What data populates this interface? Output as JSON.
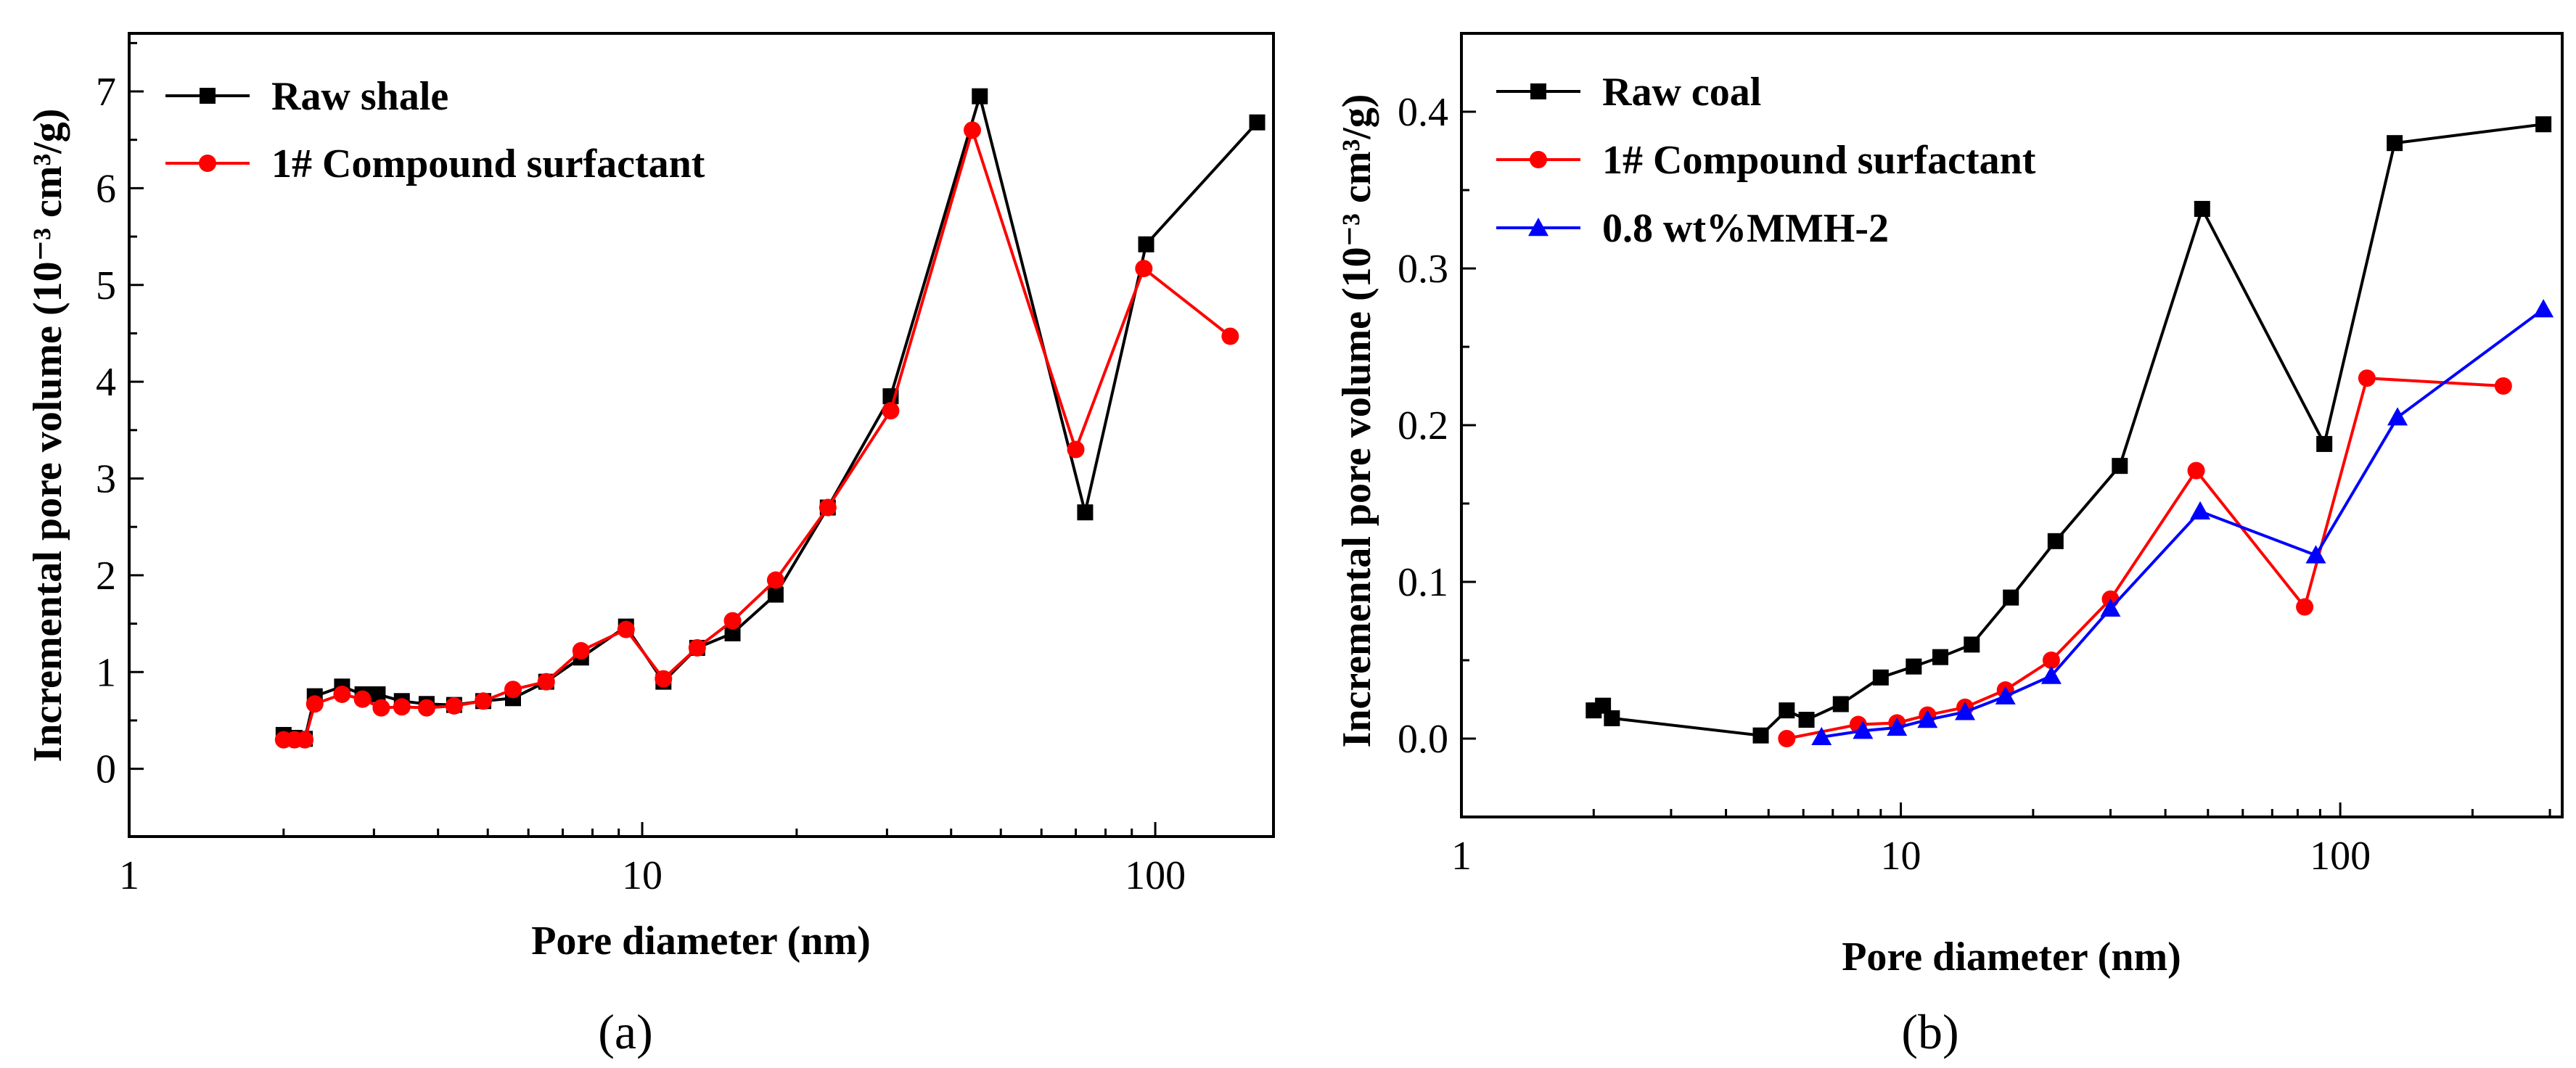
{
  "chart_data": [
    {
      "type": "line",
      "panel_label": "(a)",
      "xscale": "log",
      "xlabel": "Pore diameter (nm)",
      "ylabel": "Incremental pore volume (10⁻³ cm³/g)",
      "xlim": [
        1,
        170
      ],
      "ylim": [
        -0.7,
        7.6
      ],
      "xticks": [
        1,
        10,
        100
      ],
      "xtick_labels": [
        "1",
        "10",
        "100"
      ],
      "yticks": [
        0,
        1,
        2,
        3,
        4,
        5,
        6,
        7
      ],
      "ytick_labels": [
        "0",
        "1",
        "2",
        "3",
        "4",
        "5",
        "6",
        "7"
      ],
      "legend_position": "top-left",
      "series": [
        {
          "name": "Raw shale",
          "color": "#000000",
          "marker": "square",
          "x": [
            2.0,
            2.1,
            2.2,
            2.3,
            2.6,
            2.85,
            3.05,
            3.4,
            3.8,
            4.3,
            4.9,
            5.6,
            6.5,
            7.6,
            9.3,
            11.0,
            12.8,
            15.0,
            18.2,
            23.0,
            30.5,
            45.5,
            73.0,
            96.0,
            158.0
          ],
          "y": [
            0.35,
            0.32,
            0.31,
            0.75,
            0.85,
            0.77,
            0.77,
            0.7,
            0.67,
            0.66,
            0.7,
            0.73,
            0.9,
            1.15,
            1.47,
            0.9,
            1.25,
            1.4,
            1.8,
            2.7,
            3.85,
            6.95,
            2.65,
            5.42,
            6.68
          ]
        },
        {
          "name": "1# Compound surfactant",
          "color": "#ff0000",
          "marker": "circle",
          "x": [
            2.0,
            2.1,
            2.2,
            2.3,
            2.6,
            2.85,
            3.1,
            3.4,
            3.8,
            4.3,
            4.9,
            5.6,
            6.5,
            7.6,
            9.3,
            11.0,
            12.8,
            15.0,
            18.2,
            23.0,
            30.5,
            44.0,
            70.0,
            95.0,
            140.0
          ],
          "y": [
            0.3,
            0.3,
            0.3,
            0.67,
            0.77,
            0.72,
            0.63,
            0.64,
            0.63,
            0.65,
            0.7,
            0.82,
            0.9,
            1.22,
            1.44,
            0.93,
            1.25,
            1.53,
            1.95,
            2.7,
            3.7,
            6.6,
            3.3,
            5.17,
            4.47
          ]
        }
      ]
    },
    {
      "type": "line",
      "panel_label": "(b)",
      "xscale": "log",
      "xlabel": "Pore diameter (nm)",
      "ylabel": "Incremental pore volume (10⁻³ cm³/g)",
      "xlim": [
        1,
        320
      ],
      "ylim": [
        -0.05,
        0.45
      ],
      "xticks": [
        1,
        10,
        100
      ],
      "xtick_labels": [
        "1",
        "10",
        "100"
      ],
      "yticks": [
        0.0,
        0.1,
        0.2,
        0.3,
        0.4
      ],
      "ytick_labels": [
        "0.0",
        "0.1",
        "0.2",
        "0.3",
        "0.4"
      ],
      "legend_position": "top-left",
      "series": [
        {
          "name": "Raw coal",
          "color": "#000000",
          "marker": "square",
          "x": [
            2.0,
            2.1,
            2.2,
            4.8,
            5.5,
            6.1,
            7.3,
            9.0,
            10.7,
            12.3,
            14.5,
            17.8,
            22.5,
            31.5,
            48.5,
            92.0,
            133.0,
            290.0
          ],
          "y": [
            0.018,
            0.021,
            0.013,
            0.002,
            0.018,
            0.012,
            0.022,
            0.039,
            0.046,
            0.052,
            0.06,
            0.09,
            0.126,
            0.174,
            0.338,
            0.188,
            0.38,
            0.392
          ],
          "size": 2.0
        },
        {
          "name": "1# Compound surfactant",
          "color": "#ff0000",
          "marker": "circle",
          "x": [
            5.5,
            8.0,
            9.8,
            11.5,
            14.0,
            17.3,
            22.0,
            30.0,
            47.0,
            83.0,
            115.0,
            235.0
          ],
          "y": [
            0.0,
            0.009,
            0.01,
            0.015,
            0.02,
            0.031,
            0.05,
            0.089,
            0.171,
            0.084,
            0.23,
            0.225
          ]
        },
        {
          "name": "0.8 wt%MMH-2",
          "color": "#0000ff",
          "marker": "triangle",
          "x": [
            6.6,
            8.2,
            9.8,
            11.5,
            14.0,
            17.3,
            22.0,
            30.0,
            48.0,
            88.0,
            135.0,
            290.0
          ],
          "y": [
            0.001,
            0.005,
            0.007,
            0.012,
            0.017,
            0.027,
            0.04,
            0.083,
            0.145,
            0.117,
            0.205,
            0.274
          ]
        }
      ]
    }
  ]
}
